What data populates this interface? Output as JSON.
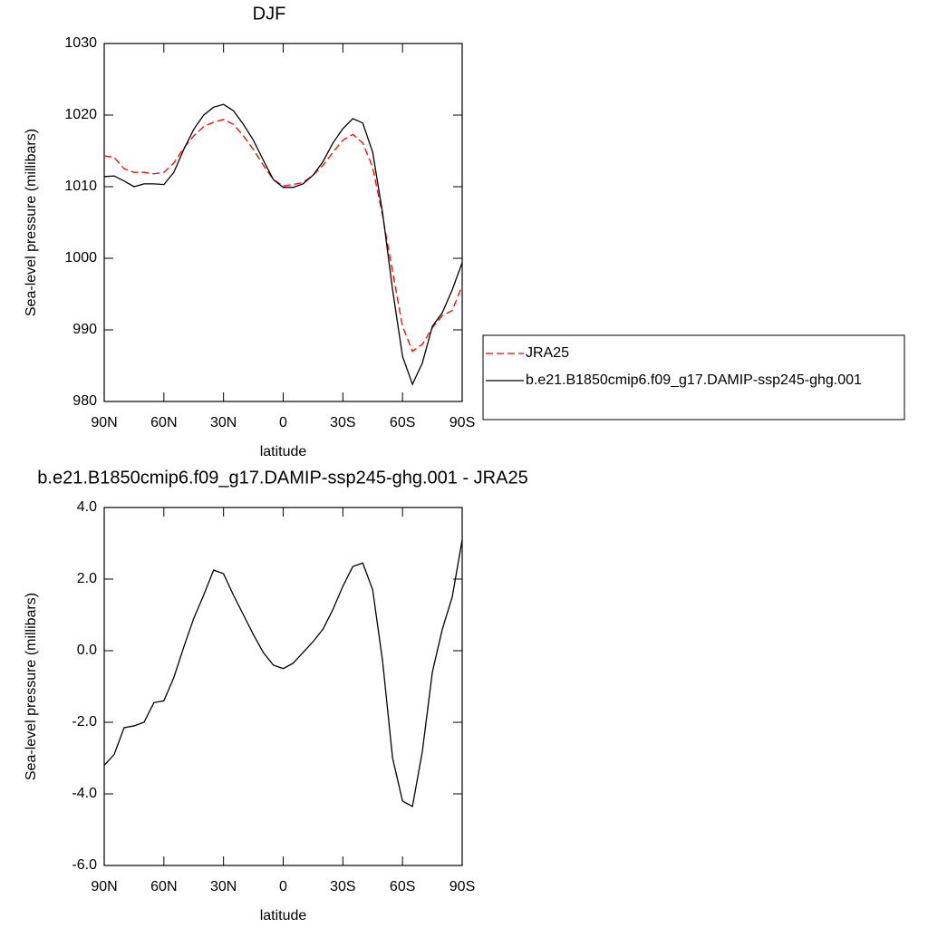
{
  "chart_data": [
    {
      "type": "line",
      "title": "DJF",
      "xlabel": "latitude",
      "ylabel": "Sea-level pressure (millibars)",
      "x": [
        90,
        85,
        80,
        75,
        70,
        65,
        60,
        55,
        50,
        45,
        40,
        35,
        30,
        25,
        20,
        15,
        10,
        5,
        0,
        -5,
        -10,
        -15,
        -20,
        -25,
        -30,
        -35,
        -40,
        -45,
        -50,
        -55,
        -60,
        -65,
        -70,
        -75,
        -80,
        -85,
        -90
      ],
      "xlim": [
        90,
        -90
      ],
      "xticks": [
        {
          "value": 90,
          "label": "90N"
        },
        {
          "value": 60,
          "label": "60N"
        },
        {
          "value": 30,
          "label": "30N"
        },
        0,
        {
          "value": -30,
          "label": "30S"
        },
        {
          "value": -60,
          "label": "60S"
        },
        {
          "value": -90,
          "label": "90S"
        }
      ],
      "ylim": [
        980,
        1030
      ],
      "yticks": [
        980,
        990,
        1000,
        1010,
        1020,
        1030
      ],
      "legend": "outside right",
      "series": [
        {
          "name": "JRA25",
          "color": "#ff0000",
          "line_style": "dashed",
          "values": [
            1014.3,
            1014.1,
            1012.5,
            1012.0,
            1012.0,
            1011.8,
            1012.0,
            1013.3,
            1015.4,
            1017.1,
            1018.4,
            1019.0,
            1019.4,
            1018.7,
            1017.1,
            1015.2,
            1013.0,
            1011.0,
            1010.1,
            1010.3,
            1010.6,
            1011.6,
            1013.0,
            1014.8,
            1016.5,
            1017.3,
            1016.1,
            1012.7,
            1005.9,
            998.1,
            990.5,
            987.0,
            988.0,
            990.3,
            992.0,
            992.7,
            996.2
          ]
        },
        {
          "name": "b.e21.B1850cmip6.f09_g17.DAMIP-ssp245-ghg.001",
          "color": "#000000",
          "line_style": "solid",
          "values": [
            1011.4,
            1011.5,
            1010.8,
            1010.0,
            1010.4,
            1010.4,
            1010.3,
            1012.0,
            1015.2,
            1018.0,
            1020.0,
            1021.1,
            1021.5,
            1020.6,
            1018.7,
            1016.5,
            1013.7,
            1011.0,
            1009.9,
            1009.9,
            1010.4,
            1011.6,
            1013.5,
            1016.1,
            1018.1,
            1019.5,
            1018.9,
            1014.8,
            1006.3,
            995.6,
            986.3,
            982.4,
            985.4,
            990.5,
            992.4,
            995.6,
            999.4
          ]
        }
      ]
    },
    {
      "type": "line",
      "title": "b.e21.B1850cmip6.f09_g17.DAMIP-ssp245-ghg.001 - JRA25",
      "xlabel": "latitude",
      "ylabel": "Sea-level pressure (millibars)",
      "x": [
        90,
        85,
        80,
        75,
        70,
        65,
        60,
        55,
        50,
        45,
        40,
        35,
        30,
        25,
        20,
        15,
        10,
        5,
        0,
        -5,
        -10,
        -15,
        -20,
        -25,
        -30,
        -35,
        -40,
        -45,
        -50,
        -55,
        -60,
        -65,
        -70,
        -75,
        -80,
        -85,
        -90
      ],
      "xlim": [
        90,
        -90
      ],
      "xticks": [
        {
          "value": 90,
          "label": "90N"
        },
        {
          "value": 60,
          "label": "60N"
        },
        {
          "value": 30,
          "label": "30N"
        },
        0,
        {
          "value": -30,
          "label": "30S"
        },
        {
          "value": -60,
          "label": "60S"
        },
        {
          "value": -90,
          "label": "90S"
        }
      ],
      "ylim": [
        -6,
        4
      ],
      "yticks": [
        {
          "value": -6,
          "label": "-6.0"
        },
        {
          "value": -4,
          "label": "-4.0"
        },
        {
          "value": -2,
          "label": "-2.0"
        },
        {
          "value": 0,
          "label": "0.0"
        },
        {
          "value": 2,
          "label": "2.0"
        },
        {
          "value": 4,
          "label": "4.0"
        }
      ],
      "color": "#000000",
      "values": [
        -3.2,
        -2.9,
        -2.15,
        -2.1,
        -2.0,
        -1.45,
        -1.4,
        -0.75,
        0.1,
        0.9,
        1.55,
        2.25,
        2.15,
        1.55,
        1.0,
        0.45,
        -0.05,
        -0.4,
        -0.5,
        -0.35,
        -0.05,
        0.25,
        0.6,
        1.15,
        1.8,
        2.35,
        2.45,
        1.7,
        -0.3,
        -3.0,
        -4.2,
        -4.35,
        -2.8,
        -0.6,
        0.6,
        1.5,
        3.1
      ]
    }
  ]
}
